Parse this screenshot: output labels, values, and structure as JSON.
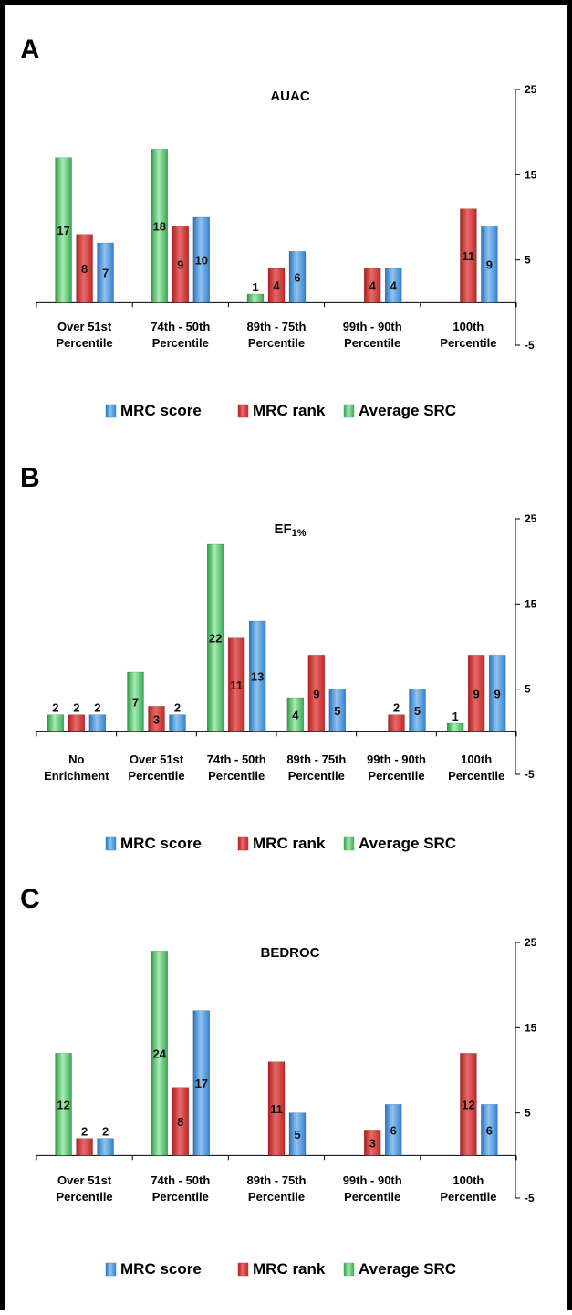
{
  "chart_data": [
    {
      "type": "bar",
      "panel_label": "A",
      "title": "AUAC",
      "title_sub": "",
      "categories": [
        [
          "Over 51st",
          "Percentile"
        ],
        [
          "74th - 50th",
          "Percentile"
        ],
        [
          "89th - 75th",
          "Percentile"
        ],
        [
          "99th  - 90th",
          "Percentile"
        ],
        [
          "100th",
          "Percentile"
        ]
      ],
      "series": [
        {
          "name": "Average SRC",
          "values": [
            17,
            18,
            1,
            null,
            null
          ]
        },
        {
          "name": "MRC rank",
          "values": [
            8,
            9,
            4,
            4,
            11
          ]
        },
        {
          "name": "MRC score",
          "values": [
            7,
            10,
            6,
            4,
            9
          ]
        }
      ],
      "ylim": [
        -5,
        25
      ],
      "yticks": [
        "25",
        "15",
        "5",
        "-5"
      ],
      "xlabel": "",
      "ylabel": "",
      "legend": [
        "MRC score",
        "MRC rank",
        "Average SRC"
      ],
      "legend_position": "bottom",
      "grid": false
    },
    {
      "type": "bar",
      "panel_label": "B",
      "title": "EF",
      "title_sub": "1%",
      "categories": [
        [
          "No",
          "Enrichment"
        ],
        [
          "Over 51st",
          "Percentile"
        ],
        [
          "74th - 50th",
          "Percentile"
        ],
        [
          "89th - 75th",
          "Percentile"
        ],
        [
          "99th  - 90th",
          "Percentile"
        ],
        [
          "100th",
          "Percentile"
        ]
      ],
      "series": [
        {
          "name": "Average SRC",
          "values": [
            2,
            7,
            22,
            4,
            null,
            1
          ]
        },
        {
          "name": "MRC rank",
          "values": [
            2,
            3,
            11,
            9,
            2,
            9
          ]
        },
        {
          "name": "MRC score",
          "values": [
            2,
            2,
            13,
            5,
            5,
            9
          ]
        }
      ],
      "ylim": [
        -5,
        25
      ],
      "yticks": [
        "25",
        "15",
        "5",
        "-5"
      ],
      "xlabel": "",
      "ylabel": "",
      "legend": [
        "MRC score",
        "MRC rank",
        "Average SRC"
      ],
      "legend_position": "bottom",
      "grid": false
    },
    {
      "type": "bar",
      "panel_label": "C",
      "title": "BEDROC",
      "title_sub": "",
      "categories": [
        [
          "Over 51st",
          "Percentile"
        ],
        [
          "74th - 50th",
          "Percentile"
        ],
        [
          "89th - 75th",
          "Percentile"
        ],
        [
          "99th  - 90th",
          "Percentile"
        ],
        [
          "100th",
          "Percentile"
        ]
      ],
      "series": [
        {
          "name": "Average SRC",
          "values": [
            12,
            24,
            null,
            null,
            null
          ]
        },
        {
          "name": "MRC rank",
          "values": [
            2,
            8,
            11,
            3,
            12
          ]
        },
        {
          "name": "MRC score",
          "values": [
            2,
            17,
            5,
            6,
            6
          ]
        }
      ],
      "ylim": [
        -5,
        25
      ],
      "yticks": [
        "25",
        "15",
        "5",
        "-5"
      ],
      "xlabel": "",
      "ylabel": "",
      "legend": [
        "MRC score",
        "MRC rank",
        "Average SRC"
      ],
      "legend_position": "bottom",
      "grid": false
    }
  ],
  "colors": {
    "Average SRC": "#4fc56b",
    "MRC rank": "#d63434",
    "MRC score": "#3f8fd6"
  }
}
